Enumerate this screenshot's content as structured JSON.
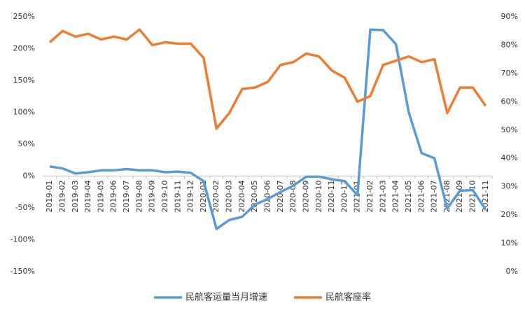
{
  "chart_data": {
    "type": "line",
    "categories": [
      "2019-01",
      "2019-02",
      "2019-03",
      "2019-04",
      "2019-05",
      "2019-06",
      "2019-07",
      "2019-08",
      "2019-09",
      "2019-10",
      "2019-11",
      "2019-12",
      "2020-01",
      "2020-02",
      "2020-03",
      "2020-04",
      "2020-05",
      "2020-06",
      "2020-07",
      "2020-08",
      "2020-09",
      "2020-10",
      "2020-11",
      "2020-12",
      "2021-01",
      "2021-02",
      "2021-03",
      "2021-04",
      "2021-05",
      "2021-06",
      "2021-07",
      "2021-08",
      "2021-09",
      "2021-10",
      "2021-11"
    ],
    "series": [
      {
        "name": "民航客运量当月增速",
        "color": "#5b9bd5",
        "axis": "y",
        "values": [
          15,
          12,
          4,
          6,
          9,
          9,
          11,
          9,
          9,
          6,
          7,
          5,
          -8,
          -83,
          -69,
          -64,
          -45,
          -36,
          -25,
          -15,
          -1,
          -1,
          -5,
          -8,
          -30,
          230,
          229,
          207,
          100,
          36,
          28,
          -51,
          -23,
          -22,
          -53
        ]
      },
      {
        "name": "民航客座率",
        "color": "#ed7d31",
        "axis": "y2",
        "values": [
          81,
          85,
          83,
          84,
          82,
          83,
          82,
          85.5,
          80,
          81,
          80.5,
          80.5,
          75.5,
          50.5,
          56,
          64.5,
          65,
          67,
          73,
          74,
          77,
          76,
          71,
          68.5,
          60,
          62,
          73,
          74.5,
          76,
          74,
          75,
          56,
          65,
          65,
          58.5
        ]
      }
    ],
    "ylim": [
      -150,
      250
    ],
    "yticks": [
      {
        "value": -150,
        "label": "-150%"
      },
      {
        "value": -100,
        "label": "-100%"
      },
      {
        "value": -50,
        "label": "-50%"
      },
      {
        "value": 0,
        "label": "0%"
      },
      {
        "value": 50,
        "label": "50%"
      },
      {
        "value": 100,
        "label": "100%"
      },
      {
        "value": 150,
        "label": "150%"
      },
      {
        "value": 200,
        "label": "200%"
      },
      {
        "value": 250,
        "label": "250%"
      }
    ],
    "y2lim": [
      0,
      90
    ],
    "y2ticks": [
      {
        "value": 0,
        "label": "0%"
      },
      {
        "value": 10,
        "label": "10%"
      },
      {
        "value": 20,
        "label": "20%"
      },
      {
        "value": 30,
        "label": "30%"
      },
      {
        "value": 40,
        "label": "40%"
      },
      {
        "value": 50,
        "label": "50%"
      },
      {
        "value": 60,
        "label": "60%"
      },
      {
        "value": 70,
        "label": "70%"
      },
      {
        "value": 80,
        "label": "80%"
      },
      {
        "value": 90,
        "label": "90%"
      }
    ],
    "grid": false,
    "legend": "bottom"
  }
}
